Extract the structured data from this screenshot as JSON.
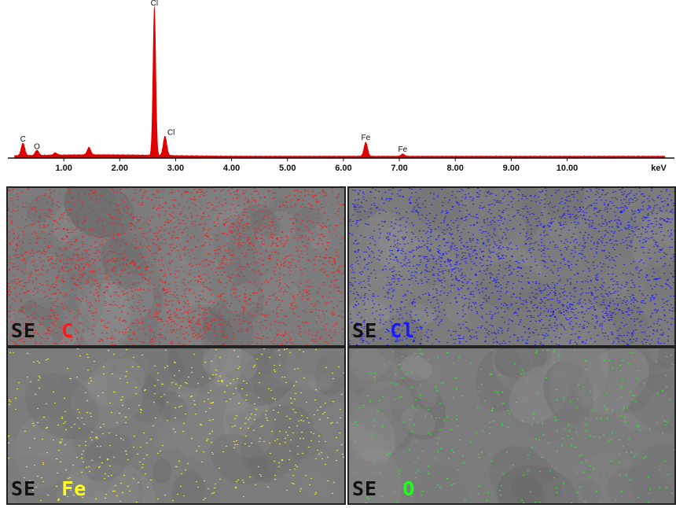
{
  "chart_data": {
    "type": "line",
    "title": "",
    "xlabel": "keV",
    "ylabel": "",
    "xlim": [
      0,
      11.7
    ],
    "x_ticks": [
      "1.00",
      "2.00",
      "3.00",
      "4.00",
      "5.00",
      "6.00",
      "7.00",
      "8.00",
      "9.00",
      "10.00"
    ],
    "series": [
      {
        "color": "#e00000",
        "values": "counts (relative)"
      }
    ],
    "peaks": [
      {
        "label": "C",
        "energy": 0.27,
        "height": 0.085
      },
      {
        "label": "O",
        "energy": 0.52,
        "height": 0.035
      },
      {
        "label": "Cl",
        "energy": 2.62,
        "height": 1.0
      },
      {
        "label": "Cl",
        "energy": 2.81,
        "height": 0.13
      },
      {
        "label": "Fe",
        "energy": 6.4,
        "height": 0.095
      },
      {
        "label": "Fe",
        "energy": 7.06,
        "height": 0.015
      }
    ],
    "minor_peaks": [
      {
        "energy": 0.85,
        "height": 0.015
      },
      {
        "energy": 1.45,
        "height": 0.05
      }
    ]
  },
  "maps": [
    {
      "prefix": "SE",
      "element": "C",
      "color": "#ff1a1a"
    },
    {
      "prefix": "SE",
      "element": "Cl",
      "color": "#1a1aff"
    },
    {
      "prefix": "SE",
      "element": "Fe",
      "color": "#ffff1a"
    },
    {
      "prefix": "SE",
      "element": "O",
      "color": "#1aff1a"
    }
  ]
}
